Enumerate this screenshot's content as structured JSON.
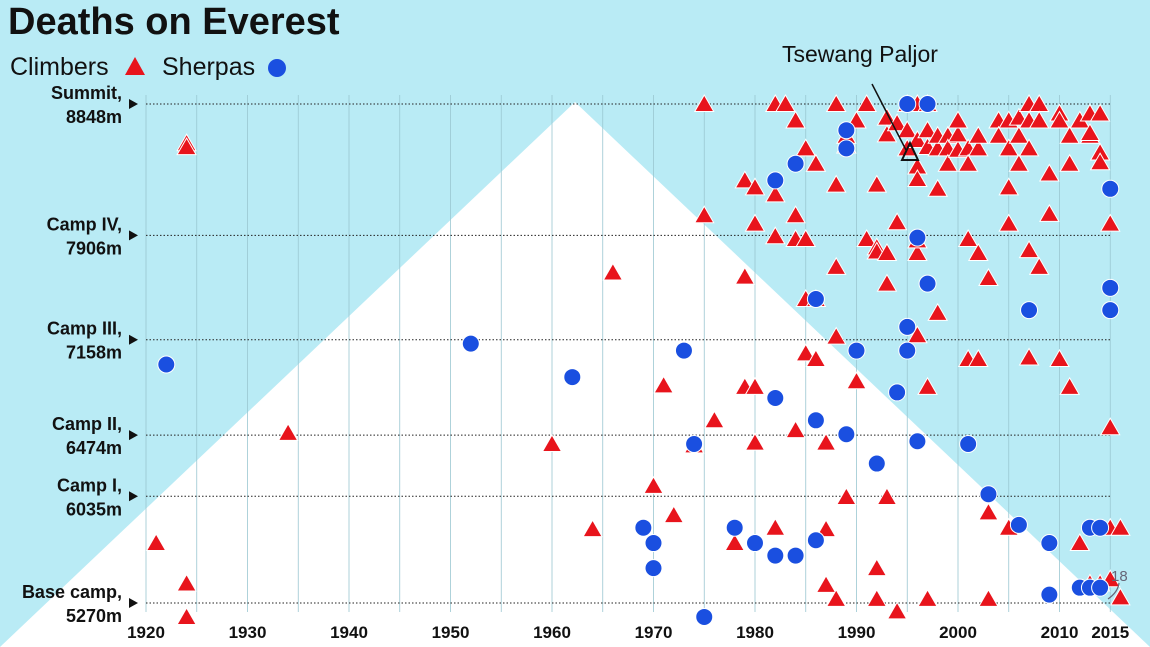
{
  "chart_data": {
    "type": "scatter",
    "title": "Deaths on Everest",
    "legend": {
      "placement": "top-left",
      "climbers": "Climbers",
      "sherpas": "Sherpas"
    },
    "colors": {
      "climbers": "#e8141c",
      "sherpas": "#1a4fe0",
      "background": "#b9ebf5",
      "mountain": "#ffffff"
    },
    "xlim": [
      1915,
      2018
    ],
    "ylim": [
      5150,
      8848
    ],
    "x_ticks": [
      {
        "value": 1920,
        "label": "1920"
      },
      {
        "value": 1930,
        "label": "1930"
      },
      {
        "value": 1940,
        "label": "1940"
      },
      {
        "value": 1950,
        "label": "1950"
      },
      {
        "value": 1960,
        "label": "1960"
      },
      {
        "value": 1970,
        "label": "1970"
      },
      {
        "value": 1980,
        "label": "1980"
      },
      {
        "value": 1990,
        "label": "1990"
      },
      {
        "value": 2000,
        "label": "2000"
      },
      {
        "value": 2010,
        "label": "2010"
      },
      {
        "value": 2015,
        "label": "2015"
      }
    ],
    "altitude_levels": [
      {
        "line1": "Summit,",
        "line2": "8848m",
        "value": 8848
      },
      {
        "line1": "Camp IV,",
        "line2": "7906m",
        "value": 7906
      },
      {
        "line1": "Camp III,",
        "line2": "7158m",
        "value": 7158
      },
      {
        "line1": "Camp II,",
        "line2": "6474m",
        "value": 6474
      },
      {
        "line1": "Camp I,",
        "line2": "6035m",
        "value": 6035
      },
      {
        "line1": "Base camp,",
        "line2": "5270m",
        "value": 5270
      }
    ],
    "annotations": [
      {
        "text": "Tsewang Paljor",
        "x": 1996,
        "y": 8530
      },
      {
        "text": "18",
        "x": 2015,
        "y": 5270
      }
    ],
    "series": [
      {
        "name": "Climbers",
        "marker": "triangle",
        "points": [
          [
            1924,
            8567
          ],
          [
            1924,
            8539
          ],
          [
            1921,
            5700
          ],
          [
            1924,
            5410
          ],
          [
            1924,
            5170
          ],
          [
            1934,
            6490
          ],
          [
            1960,
            6410
          ],
          [
            1964,
            5800
          ],
          [
            1966,
            7640
          ],
          [
            1970,
            6110
          ],
          [
            1971,
            6830
          ],
          [
            1972,
            5900
          ],
          [
            1974,
            6400
          ],
          [
            1975,
            8848
          ],
          [
            1975,
            8050
          ],
          [
            1976,
            6580
          ],
          [
            1978,
            5700
          ],
          [
            1979,
            7610
          ],
          [
            1979,
            6820
          ],
          [
            1979,
            8300
          ],
          [
            1980,
            8250
          ],
          [
            1980,
            6820
          ],
          [
            1980,
            6420
          ],
          [
            1980,
            7990
          ],
          [
            1982,
            8848
          ],
          [
            1982,
            8200
          ],
          [
            1982,
            7900
          ],
          [
            1982,
            5810
          ],
          [
            1983,
            8848
          ],
          [
            1984,
            8730
          ],
          [
            1984,
            7880
          ],
          [
            1984,
            6510
          ],
          [
            1984,
            8050
          ],
          [
            1985,
            7880
          ],
          [
            1985,
            8530
          ],
          [
            1985,
            7450
          ],
          [
            1985,
            7060
          ],
          [
            1986,
            7020
          ],
          [
            1986,
            7450
          ],
          [
            1986,
            8420
          ],
          [
            1987,
            5400
          ],
          [
            1987,
            5800
          ],
          [
            1987,
            6420
          ],
          [
            1988,
            8848
          ],
          [
            1988,
            7680
          ],
          [
            1988,
            8270
          ],
          [
            1988,
            5300
          ],
          [
            1988,
            7180
          ],
          [
            1989,
            6030
          ],
          [
            1989,
            8550
          ],
          [
            1989,
            8620
          ],
          [
            1990,
            8730
          ],
          [
            1990,
            6860
          ],
          [
            1991,
            8848
          ],
          [
            1991,
            7880
          ],
          [
            1992,
            5520
          ],
          [
            1992,
            5300
          ],
          [
            1992,
            7820
          ],
          [
            1992,
            7790
          ],
          [
            1992,
            8270
          ],
          [
            1993,
            6030
          ],
          [
            1993,
            7560
          ],
          [
            1993,
            8750
          ],
          [
            1993,
            8630
          ],
          [
            1993,
            7780
          ],
          [
            1994,
            8710
          ],
          [
            1994,
            5210
          ],
          [
            1994,
            8000
          ],
          [
            1995,
            8848
          ],
          [
            1995,
            8660
          ],
          [
            1995,
            8530
          ],
          [
            1996,
            8848
          ],
          [
            1996,
            8590
          ],
          [
            1996,
            8400
          ],
          [
            1996,
            8310
          ],
          [
            1996,
            7780
          ],
          [
            1996,
            7870
          ],
          [
            1996,
            7190
          ],
          [
            1997,
            8660
          ],
          [
            1997,
            8540
          ],
          [
            1997,
            8848
          ],
          [
            1997,
            6820
          ],
          [
            1997,
            5300
          ],
          [
            1998,
            8530
          ],
          [
            1998,
            7350
          ],
          [
            1998,
            8620
          ],
          [
            1998,
            8240
          ],
          [
            1999,
            8620
          ],
          [
            1999,
            8530
          ],
          [
            1999,
            8420
          ],
          [
            2000,
            8520
          ],
          [
            2000,
            8630
          ],
          [
            2000,
            8730
          ],
          [
            2001,
            8530
          ],
          [
            2001,
            8420
          ],
          [
            2001,
            7020
          ],
          [
            2001,
            7880
          ],
          [
            2002,
            8530
          ],
          [
            2002,
            7020
          ],
          [
            2002,
            7780
          ],
          [
            2002,
            8620
          ],
          [
            2003,
            7600
          ],
          [
            2003,
            5920
          ],
          [
            2003,
            5300
          ],
          [
            2004,
            8730
          ],
          [
            2004,
            8620
          ],
          [
            2005,
            8730
          ],
          [
            2005,
            8530
          ],
          [
            2005,
            8250
          ],
          [
            2005,
            7990
          ],
          [
            2005,
            5810
          ],
          [
            2006,
            8750
          ],
          [
            2006,
            8620
          ],
          [
            2006,
            8420
          ],
          [
            2007,
            8848
          ],
          [
            2007,
            8730
          ],
          [
            2007,
            8530
          ],
          [
            2007,
            7800
          ],
          [
            2007,
            7030
          ],
          [
            2008,
            8848
          ],
          [
            2008,
            8730
          ],
          [
            2008,
            7680
          ],
          [
            2009,
            8350
          ],
          [
            2009,
            8060
          ],
          [
            2010,
            8780
          ],
          [
            2010,
            8730
          ],
          [
            2010,
            7020
          ],
          [
            2011,
            8620
          ],
          [
            2011,
            8420
          ],
          [
            2011,
            6820
          ],
          [
            2012,
            8730
          ],
          [
            2012,
            5700
          ],
          [
            2013,
            8780
          ],
          [
            2013,
            8620
          ],
          [
            2013,
            8640
          ],
          [
            2013,
            5410
          ],
          [
            2014,
            8500
          ],
          [
            2014,
            8430
          ],
          [
            2014,
            8780
          ],
          [
            2014,
            5410
          ],
          [
            2015,
            5810
          ],
          [
            2015,
            6530
          ],
          [
            2015,
            7990
          ],
          [
            2015,
            5440
          ],
          [
            2016,
            5810
          ],
          [
            2016,
            5310
          ]
        ]
      },
      {
        "name": "Sherpas",
        "marker": "circle",
        "points": [
          [
            1922,
            6980
          ],
          [
            1952,
            7130
          ],
          [
            1962,
            6890
          ],
          [
            1969,
            5810
          ],
          [
            1970,
            5700
          ],
          [
            1970,
            5520
          ],
          [
            1973,
            7080
          ],
          [
            1974,
            6410
          ],
          [
            1975,
            5170
          ],
          [
            1978,
            5810
          ],
          [
            1980,
            5700
          ],
          [
            1982,
            5610
          ],
          [
            1982,
            6740
          ],
          [
            1982,
            8300
          ],
          [
            1984,
            5610
          ],
          [
            1984,
            8420
          ],
          [
            1986,
            5720
          ],
          [
            1986,
            6580
          ],
          [
            1986,
            7450
          ],
          [
            1989,
            6480
          ],
          [
            1989,
            8660
          ],
          [
            1989,
            8530
          ],
          [
            1990,
            7080
          ],
          [
            1992,
            6270
          ],
          [
            1994,
            6780
          ],
          [
            1995,
            7250
          ],
          [
            1995,
            7080
          ],
          [
            1995,
            8848
          ],
          [
            1996,
            6430
          ],
          [
            1996,
            7890
          ],
          [
            1997,
            7560
          ],
          [
            1997,
            8848
          ],
          [
            2001,
            6410
          ],
          [
            2003,
            6050
          ],
          [
            2006,
            5830
          ],
          [
            2007,
            7370
          ],
          [
            2009,
            5700
          ],
          [
            2009,
            5330
          ],
          [
            2012,
            5380
          ],
          [
            2013,
            5380
          ],
          [
            2013,
            5810
          ],
          [
            2014,
            5810
          ],
          [
            2014,
            5380
          ],
          [
            2015,
            8240
          ],
          [
            2015,
            7530
          ],
          [
            2015,
            7370
          ]
        ]
      }
    ]
  }
}
